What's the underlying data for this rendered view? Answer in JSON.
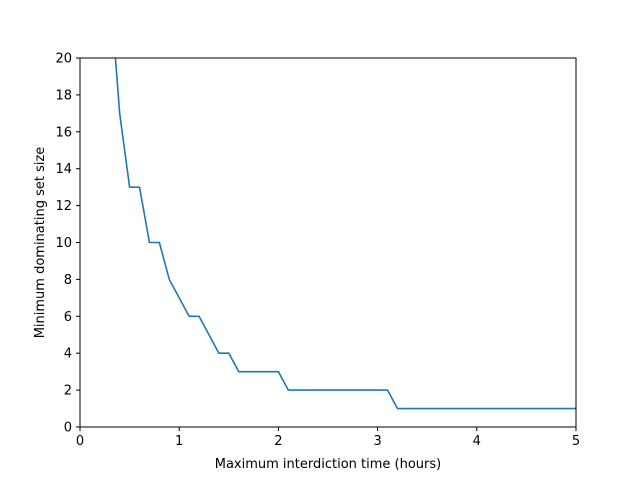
{
  "chart_data": {
    "type": "line",
    "xlabel": "Maximum interdiction time (hours)",
    "ylabel": "Minimum dominating set size",
    "xlim": [
      0,
      5
    ],
    "ylim": [
      0,
      20
    ],
    "xticks": [
      0,
      1,
      2,
      3,
      4,
      5
    ],
    "xtick_labels": [
      "0",
      "1",
      "2",
      "3",
      "4",
      "5"
    ],
    "yticks": [
      0,
      2,
      4,
      6,
      8,
      10,
      12,
      14,
      16,
      18,
      20
    ],
    "ytick_labels": [
      "0",
      "2",
      "4",
      "6",
      "8",
      "10",
      "12",
      "14",
      "16",
      "18",
      "20"
    ],
    "grid": false,
    "series": [
      {
        "color": "#1f77b4",
        "x": [
          0.3,
          0.4,
          0.5,
          0.6,
          0.7,
          0.8,
          0.9,
          1.0,
          1.1,
          1.2,
          1.3,
          1.4,
          1.5,
          1.6,
          1.7,
          1.8,
          1.9,
          2.0,
          2.1,
          2.2,
          2.3,
          2.4,
          2.5,
          2.6,
          2.7,
          2.8,
          2.9,
          3.0,
          3.1,
          3.2,
          3.3,
          3.5,
          4.0,
          4.5,
          5.0
        ],
        "y": [
          24,
          17,
          13,
          13,
          10,
          10,
          8,
          7,
          6,
          6,
          5,
          4,
          4,
          3,
          3,
          3,
          3,
          3,
          2,
          2,
          2,
          2,
          2,
          2,
          2,
          2,
          2,
          2,
          2,
          1,
          1,
          1,
          1,
          1,
          1
        ]
      }
    ]
  }
}
